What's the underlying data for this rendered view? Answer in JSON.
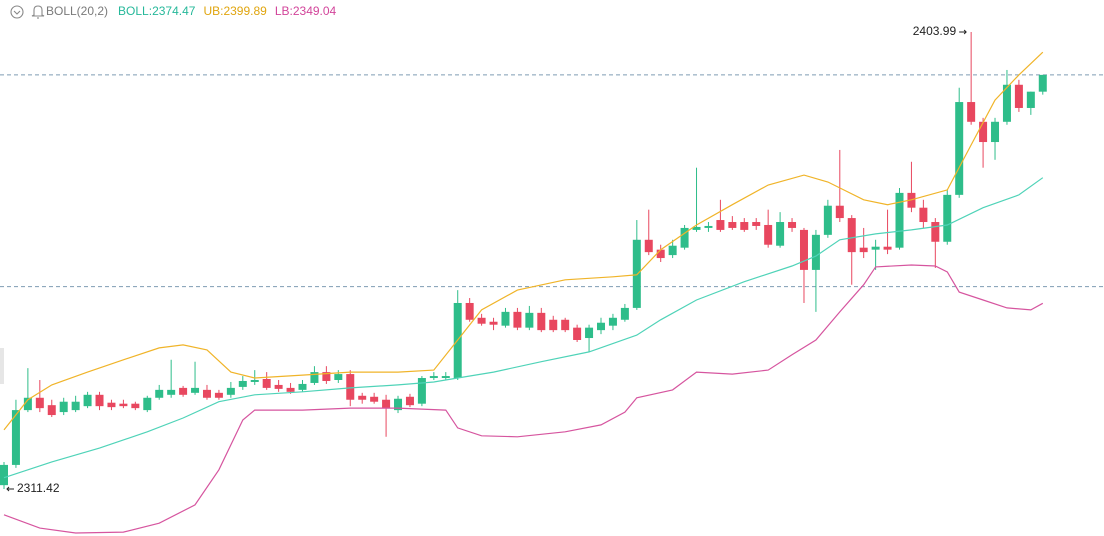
{
  "chart_data": {
    "type": "candlestick",
    "indicator": "BOLL(20,2)",
    "indicator_values": [
      {
        "text": "BOLL:2374.47",
        "color": "#26b89a"
      },
      {
        "text": "UB:2399.89",
        "color": "#e0a50f"
      },
      {
        "text": "LB:2349.04",
        "color": "#d2449a"
      }
    ],
    "up_color": "#2ebd8a",
    "down_color": "#e8475f",
    "ylim": [
      2301.9,
      2410.47
    ],
    "open": [
      2312.2,
      2316.3,
      2327.4,
      2329.9,
      2328.4,
      2327.0,
      2327.4,
      2328.2,
      2330.5,
      2328.9,
      2328.7,
      2328.7,
      2327.4,
      2329.9,
      2330.5,
      2331.9,
      2330.9,
      2331.5,
      2330.9,
      2330.5,
      2332.1,
      2333.1,
      2333.7,
      2332.5,
      2331.9,
      2331.5,
      2332.9,
      2335.1,
      2333.5,
      2334.7,
      2330.3,
      2330.1,
      2329.5,
      2327.4,
      2330.1,
      2328.7,
      2333.9,
      2333.9,
      2333.9,
      2349.1,
      2346.1,
      2345.3,
      2344.5,
      2347.3,
      2344.1,
      2347.1,
      2345.7,
      2345.7,
      2344.1,
      2342.0,
      2343.6,
      2344.5,
      2345.7,
      2348.1,
      2361.9,
      2359.9,
      2358.8,
      2360.3,
      2363.9,
      2364.3,
      2365.9,
      2365.5,
      2365.5,
      2365.5,
      2364.9,
      2360.7,
      2365.5,
      2363.9,
      2355.8,
      2362.9,
      2368.8,
      2366.3,
      2360.3,
      2359.9,
      2360.5,
      2360.3,
      2371.4,
      2368.4,
      2365.5,
      2361.5,
      2371.0,
      2389.8,
      2385.8,
      2381.7,
      2385.8,
      2393.3,
      2388.6,
      2391.9
    ],
    "high": [
      2316.9,
      2329.5,
      2335.9,
      2333.5,
      2329.5,
      2329.9,
      2330.3,
      2331.1,
      2331.1,
      2329.5,
      2329.5,
      2329.1,
      2330.3,
      2332.5,
      2337.6,
      2332.3,
      2337.2,
      2332.5,
      2331.5,
      2333.1,
      2334.3,
      2335.5,
      2335.1,
      2333.5,
      2332.9,
      2333.5,
      2336.3,
      2336.3,
      2335.5,
      2335.5,
      2330.9,
      2330.9,
      2330.5,
      2330.3,
      2330.7,
      2334.3,
      2335.1,
      2335.1,
      2351.7,
      2350.1,
      2346.9,
      2346.1,
      2348.1,
      2348.1,
      2348.5,
      2348.1,
      2346.5,
      2346.1,
      2344.7,
      2344.7,
      2346.1,
      2346.9,
      2348.9,
      2365.9,
      2368.0,
      2360.9,
      2361.9,
      2364.9,
      2376.5,
      2365.5,
      2370.0,
      2366.7,
      2366.3,
      2366.3,
      2368.0,
      2367.5,
      2366.3,
      2364.3,
      2363.9,
      2370.0,
      2380.1,
      2366.9,
      2364.3,
      2361.9,
      2368.0,
      2372.4,
      2377.7,
      2370.0,
      2366.3,
      2372.0,
      2392.7,
      2403.99,
      2386.6,
      2386.6,
      2396.3,
      2394.3,
      2391.9,
      2395.3
    ],
    "low": [
      2311.42,
      2315.7,
      2327.0,
      2327.0,
      2326.0,
      2326.4,
      2327.0,
      2327.8,
      2327.4,
      2327.4,
      2327.8,
      2327.4,
      2327.0,
      2329.5,
      2329.9,
      2330.1,
      2330.5,
      2329.5,
      2329.5,
      2329.9,
      2331.5,
      2332.5,
      2331.5,
      2331.1,
      2330.7,
      2331.1,
      2332.5,
      2332.7,
      2332.9,
      2328.2,
      2328.7,
      2328.7,
      2322.0,
      2326.8,
      2328.0,
      2328.2,
      2333.5,
      2333.5,
      2333.5,
      2345.3,
      2344.5,
      2343.6,
      2344.1,
      2343.6,
      2343.6,
      2343.2,
      2343.2,
      2343.2,
      2341.2,
      2339.2,
      2342.8,
      2343.6,
      2345.3,
      2347.7,
      2358.8,
      2357.4,
      2358.2,
      2359.9,
      2363.5,
      2363.5,
      2363.5,
      2363.9,
      2363.5,
      2363.9,
      2360.3,
      2360.3,
      2363.5,
      2349.1,
      2347.3,
      2362.3,
      2365.5,
      2352.8,
      2358.2,
      2355.8,
      2359.0,
      2359.9,
      2367.5,
      2364.3,
      2356.2,
      2360.9,
      2370.4,
      2385.2,
      2376.5,
      2378.1,
      2385.2,
      2387.8,
      2387.2,
      2391.3
    ],
    "close": [
      2316.3,
      2327.4,
      2329.9,
      2327.8,
      2326.4,
      2329.1,
      2329.1,
      2330.5,
      2328.2,
      2328.0,
      2328.2,
      2327.8,
      2329.9,
      2331.5,
      2331.5,
      2330.5,
      2331.9,
      2329.9,
      2329.9,
      2331.9,
      2333.3,
      2333.5,
      2331.9,
      2331.7,
      2331.1,
      2332.7,
      2335.1,
      2333.3,
      2334.7,
      2329.5,
      2329.5,
      2329.1,
      2327.8,
      2329.7,
      2328.4,
      2333.9,
      2334.3,
      2334.3,
      2349.1,
      2345.7,
      2344.9,
      2344.7,
      2347.3,
      2344.1,
      2347.1,
      2343.6,
      2343.6,
      2343.6,
      2341.6,
      2344.1,
      2345.1,
      2346.1,
      2348.1,
      2361.9,
      2359.4,
      2358.2,
      2360.7,
      2364.3,
      2364.5,
      2364.7,
      2363.9,
      2364.3,
      2363.9,
      2364.7,
      2360.9,
      2365.5,
      2364.3,
      2355.8,
      2362.9,
      2368.8,
      2366.3,
      2359.4,
      2359.4,
      2360.5,
      2359.9,
      2371.4,
      2368.4,
      2365.5,
      2361.5,
      2371.0,
      2389.8,
      2385.8,
      2381.7,
      2385.8,
      2393.3,
      2388.6,
      2391.9,
      2395.3
    ],
    "bands": [
      {
        "color": "#f0b429",
        "x": [
          0,
          2,
          4,
          7,
          10,
          13,
          15,
          17,
          19,
          21,
          25,
          29,
          33,
          36,
          38,
          40,
          43,
          47,
          51,
          53,
          55,
          58,
          61,
          64,
          67,
          69,
          72,
          74,
          76,
          79,
          81,
          83,
          85,
          87
        ],
        "values": [
          2323.4,
          2329.5,
          2332.5,
          2335.1,
          2337.6,
          2340.0,
          2340.6,
          2339.6,
          2335.1,
          2333.9,
          2334.5,
          2335.1,
          2335.1,
          2335.5,
          2341.6,
          2347.7,
          2351.7,
          2353.8,
          2354.4,
          2354.8,
          2359.9,
          2364.9,
          2369.0,
          2373.0,
          2375.0,
          2373.6,
          2370.0,
          2369.0,
          2370.0,
          2372.0,
          2381.1,
          2390.2,
          2395.3,
          2399.89
        ]
      },
      {
        "color": "#4fd3b8",
        "x": [
          0,
          4,
          8,
          12,
          15,
          18,
          21,
          25,
          29,
          33,
          36,
          38,
          41,
          45,
          49,
          53,
          55,
          58,
          62,
          66,
          68,
          70,
          73,
          76,
          79,
          82,
          85,
          87
        ],
        "values": [
          2313.7,
          2316.9,
          2319.7,
          2323.0,
          2325.8,
          2329.1,
          2330.5,
          2331.1,
          2331.9,
          2332.5,
          2333.1,
          2333.9,
          2335.1,
          2337.2,
          2339.2,
          2342.6,
          2345.7,
          2349.7,
          2353.4,
          2356.6,
          2358.6,
          2361.9,
          2363.1,
          2363.9,
          2364.9,
          2368.4,
          2371.0,
          2374.47
        ]
      },
      {
        "color": "#d6559f",
        "x": [
          0,
          3,
          6,
          10,
          13,
          16,
          18,
          20,
          21,
          25,
          29,
          33,
          37,
          38,
          40,
          43,
          47,
          50,
          52,
          53,
          56,
          58,
          61,
          64,
          66,
          68,
          70,
          72,
          73,
          76,
          78,
          79,
          80,
          82,
          84,
          86,
          87
        ],
        "values": [
          2306.2,
          2303.5,
          2302.5,
          2302.7,
          2304.5,
          2308.2,
          2315.3,
          2325.4,
          2327.4,
          2327.4,
          2327.8,
          2327.8,
          2327.4,
          2323.8,
          2322.2,
          2322.0,
          2323.0,
          2324.4,
          2327.0,
          2329.9,
          2331.5,
          2335.1,
          2334.7,
          2335.5,
          2338.6,
          2341.6,
          2347.3,
          2352.8,
          2356.4,
          2356.8,
          2356.6,
          2355.4,
          2351.3,
          2349.7,
          2348.1,
          2347.7,
          2349.04
        ]
      }
    ],
    "reference_lines": [
      2395.3,
      2352.4
    ],
    "annotations": [
      {
        "label": "2403.99",
        "value": 2403.99
      },
      {
        "label": "2311.42",
        "value": 2311.42
      }
    ]
  }
}
